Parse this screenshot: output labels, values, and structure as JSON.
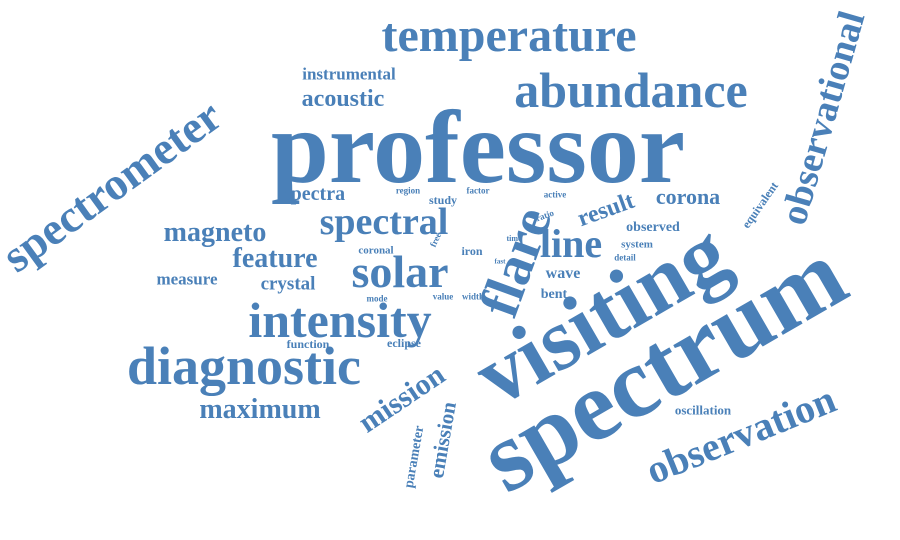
{
  "style": {
    "word_color": "#4a80b8",
    "background": "#ffffff"
  },
  "words": [
    "professor",
    "spectrum",
    "visiting",
    "abundance",
    "temperature",
    "spectrometer",
    "observational",
    "observation",
    "flare",
    "intensity",
    "diagnostic",
    "solar",
    "spectral",
    "line",
    "maximum",
    "mission",
    "magneto",
    "feature",
    "acoustic",
    "instrumental",
    "corona",
    "result",
    "spectra",
    "measure",
    "crystal",
    "emission",
    "parameter",
    "observed",
    "oscillation",
    "equivalent",
    "wave",
    "bent",
    "function",
    "eclipse",
    "coronal",
    "study",
    "region",
    "factor",
    "active",
    "ratio",
    "iron",
    "system",
    "detail",
    "time",
    "free",
    "fast",
    "value",
    "width",
    "mode"
  ]
}
